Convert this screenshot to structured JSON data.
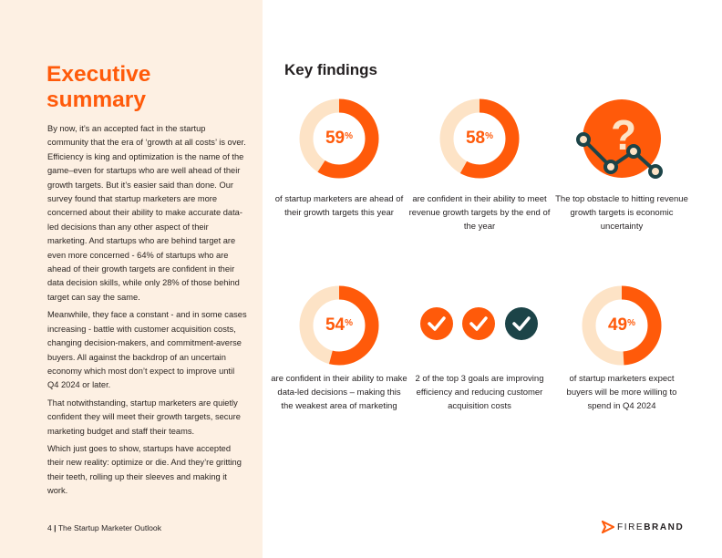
{
  "summary": {
    "title": "Executive summary",
    "paragraphs": [
      "By now, it’s an accepted fact in the startup community that the era of ‘growth at all costs’ is over. Efficiency is king and optimization is the name of the game–even for startups who are well ahead of their growth targets. But it’s easier said than done. Our survey found that startup marketers are more concerned about their ability to make accurate data-led decisions than any other aspect of their marketing. And startups who are behind target are even more concerned - 64% of startups who are ahead of their growth targets are confident in their data decision skills, while only 28% of those behind target can say the same.",
      "Meanwhile, they face a constant - and in some cases increasing - battle with customer acquisition costs, changing decision-makers, and commitment-averse buyers. All against the backdrop of an uncertain economy which most don’t expect to improve until Q4 2024 or later.",
      "That notwithstanding, startup marketers are quietly confident they will meet their growth targets, secure marketing budget and staff their teams.",
      "Which just goes to show, startups have accepted their new reality: optimize or die. And they’re gritting their teeth, rolling up their sleeves and making it work."
    ]
  },
  "footer": {
    "page": "4",
    "separator": "|",
    "publication": "The Startup Marketer Outlook"
  },
  "findings": {
    "title": "Key findings",
    "colors": {
      "accent": "#ff5a0a",
      "track": "#fde3c6",
      "dark": "#1c4448"
    },
    "items": [
      {
        "value": 59,
        "label": "59",
        "unit": "%",
        "caption": "of startup marketers are ahead of their growth targets this year"
      },
      {
        "value": 58,
        "label": "58",
        "unit": "%",
        "caption": "are confident in their ability to meet revenue growth targets by the end of the year"
      },
      {
        "icon": "question-chart-icon",
        "caption": "The top obstacle to hitting revenue growth targets is economic uncertainty"
      },
      {
        "value": 54,
        "label": "54",
        "unit": "%",
        "caption": "are confident in their ability to make data-led decisions – making this the weakest area of marketing"
      },
      {
        "icon": "checkmarks-icon",
        "checks": 3,
        "highlighted": 2,
        "caption": "2 of the top 3 goals are improving efficiency and reducing customer acquisition costs"
      },
      {
        "value": 49,
        "label": "49",
        "unit": "%",
        "caption": "of startup marketers expect buyers will be more willing to spend in Q4 2024"
      }
    ]
  },
  "logo": {
    "part1": "FIRE",
    "part2": "BRAND"
  }
}
